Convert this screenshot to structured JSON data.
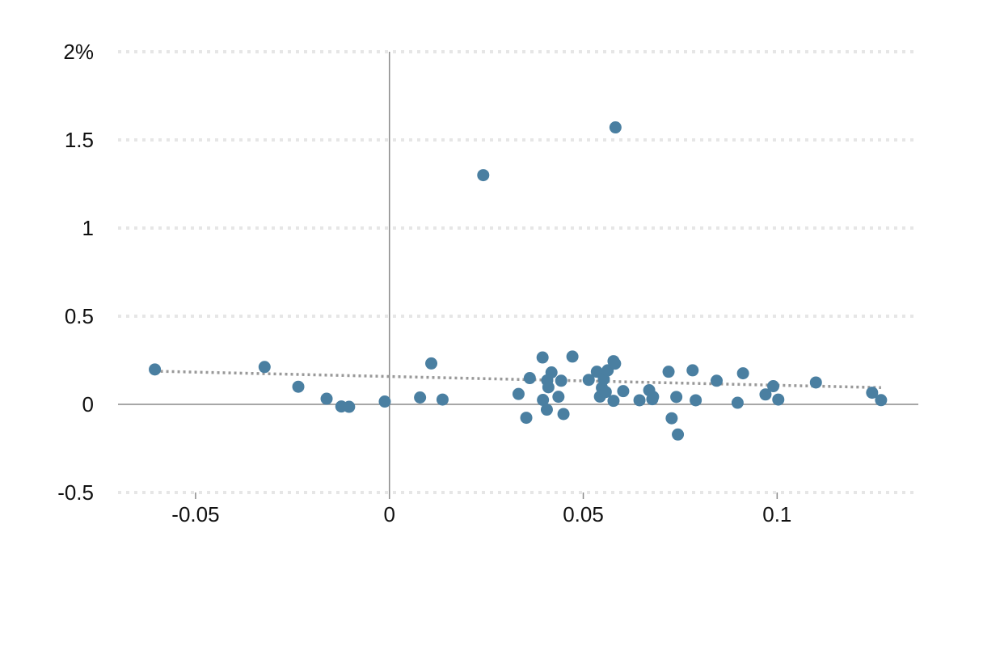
{
  "chart_data": {
    "type": "scatter",
    "title": "",
    "xlabel": "",
    "ylabel": "",
    "xlim": [
      -0.07,
      0.136
    ],
    "ylim": [
      -0.5,
      2
    ],
    "x_ticks": [
      {
        "value": -0.05,
        "label": "-0.05"
      },
      {
        "value": 0,
        "label": "0"
      },
      {
        "value": 0.05,
        "label": "0.05"
      },
      {
        "value": 0.1,
        "label": "0.1"
      }
    ],
    "y_ticks": [
      {
        "value": 2,
        "label": "2%"
      },
      {
        "value": 1.5,
        "label": "1.5"
      },
      {
        "value": 1,
        "label": "1"
      },
      {
        "value": 0.5,
        "label": "0.5"
      },
      {
        "value": 0,
        "label": "0"
      },
      {
        "value": -0.5,
        "label": "-0.5"
      }
    ],
    "grid": {
      "horizontal": true,
      "vertical": false,
      "style": "dotted"
    },
    "series": [
      {
        "color": "#4a7fa1",
        "points": [
          {
            "x": -0.0605,
            "y": 0.198
          },
          {
            "x": -0.0322,
            "y": 0.212
          },
          {
            "x": -0.0235,
            "y": 0.1
          },
          {
            "x": -0.0162,
            "y": 0.032
          },
          {
            "x": -0.0124,
            "y": -0.012
          },
          {
            "x": -0.0104,
            "y": -0.014
          },
          {
            "x": -0.0012,
            "y": 0.016
          },
          {
            "x": 0.0079,
            "y": 0.039
          },
          {
            "x": 0.0108,
            "y": 0.232
          },
          {
            "x": 0.0137,
            "y": 0.027
          },
          {
            "x": 0.0242,
            "y": 1.3
          },
          {
            "x": 0.0333,
            "y": 0.059
          },
          {
            "x": 0.0353,
            "y": -0.076
          },
          {
            "x": 0.0362,
            "y": 0.149
          },
          {
            "x": 0.0395,
            "y": 0.266
          },
          {
            "x": 0.0396,
            "y": 0.025
          },
          {
            "x": 0.0406,
            "y": -0.03
          },
          {
            "x": 0.0407,
            "y": 0.136
          },
          {
            "x": 0.041,
            "y": 0.097
          },
          {
            "x": 0.0418,
            "y": 0.181
          },
          {
            "x": 0.0436,
            "y": 0.043
          },
          {
            "x": 0.0443,
            "y": 0.134
          },
          {
            "x": 0.0449,
            "y": -0.055
          },
          {
            "x": 0.0472,
            "y": 0.271
          },
          {
            "x": 0.0514,
            "y": 0.139
          },
          {
            "x": 0.0535,
            "y": 0.185
          },
          {
            "x": 0.0543,
            "y": 0.044
          },
          {
            "x": 0.0548,
            "y": 0.094
          },
          {
            "x": 0.0553,
            "y": 0.143
          },
          {
            "x": 0.0558,
            "y": 0.07
          },
          {
            "x": 0.0563,
            "y": 0.193
          },
          {
            "x": 0.0578,
            "y": 0.245
          },
          {
            "x": 0.0578,
            "y": 0.02
          },
          {
            "x": 0.0582,
            "y": 0.231
          },
          {
            "x": 0.0583,
            "y": 1.571
          },
          {
            "x": 0.0603,
            "y": 0.075
          },
          {
            "x": 0.0645,
            "y": 0.023
          },
          {
            "x": 0.067,
            "y": 0.08
          },
          {
            "x": 0.0678,
            "y": 0.029
          },
          {
            "x": 0.068,
            "y": 0.043
          },
          {
            "x": 0.072,
            "y": 0.185
          },
          {
            "x": 0.0728,
            "y": -0.079
          },
          {
            "x": 0.074,
            "y": 0.042
          },
          {
            "x": 0.0744,
            "y": -0.171
          },
          {
            "x": 0.0782,
            "y": 0.193
          },
          {
            "x": 0.079,
            "y": 0.023
          },
          {
            "x": 0.0844,
            "y": 0.134
          },
          {
            "x": 0.0898,
            "y": 0.009
          },
          {
            "x": 0.0912,
            "y": 0.176
          },
          {
            "x": 0.097,
            "y": 0.056
          },
          {
            "x": 0.099,
            "y": 0.103
          },
          {
            "x": 0.1003,
            "y": 0.027
          },
          {
            "x": 0.11,
            "y": 0.124
          },
          {
            "x": 0.1245,
            "y": 0.066
          },
          {
            "x": 0.1268,
            "y": 0.024
          }
        ]
      }
    ],
    "trendline": {
      "color": "#999999",
      "style": "dotted",
      "points": [
        {
          "x": -0.0605,
          "y": 0.188
        },
        {
          "x": 0.1268,
          "y": 0.095
        }
      ]
    }
  }
}
